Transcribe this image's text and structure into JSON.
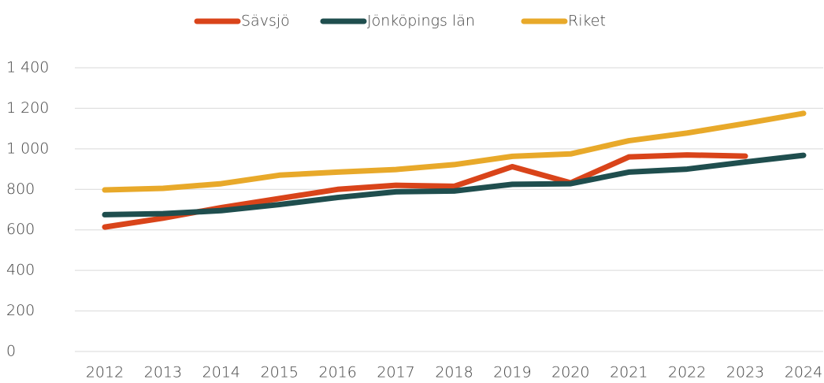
{
  "chart_data": {
    "type": "line",
    "categories": [
      "2012",
      "2013",
      "2014",
      "2015",
      "2016",
      "2017",
      "2018",
      "2019",
      "2020",
      "2021",
      "2022",
      "2023",
      "2024"
    ],
    "series": [
      {
        "name": "Sävsjö",
        "color": "#d9441a",
        "values": [
          614,
          658,
          710,
          755,
          800,
          820,
          815,
          912,
          832,
          960,
          970,
          964,
          null
        ]
      },
      {
        "name": "Jönköpings län",
        "color": "#1f4e4e",
        "values": [
          675,
          680,
          695,
          725,
          760,
          788,
          792,
          825,
          828,
          885,
          900,
          935,
          968
        ]
      },
      {
        "name": "Riket",
        "color": "#e8a92a",
        "values": [
          797,
          805,
          828,
          870,
          885,
          898,
          922,
          963,
          975,
          1040,
          1078,
          1125,
          1175
        ]
      }
    ],
    "ylim": [
      0,
      1400
    ],
    "yticks": [
      0,
      200,
      400,
      600,
      800,
      {
        "value": 1000,
        "label": "1 000"
      },
      {
        "value": 1200,
        "label": "1 200"
      },
      {
        "value": 1400,
        "label": "1 400"
      }
    ],
    "grid": true,
    "legend": "top"
  }
}
